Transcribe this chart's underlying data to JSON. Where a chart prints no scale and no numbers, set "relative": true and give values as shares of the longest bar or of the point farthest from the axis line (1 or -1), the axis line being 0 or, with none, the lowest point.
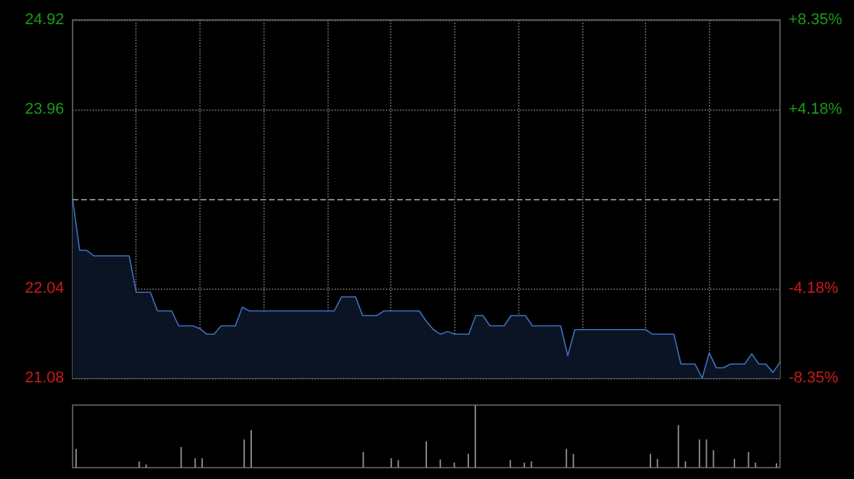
{
  "chart_data": [
    {
      "type": "area",
      "categories": [
        null,
        null,
        null,
        null,
        null,
        null,
        null,
        null,
        null,
        null,
        null,
        null,
        null,
        null,
        null,
        null,
        null,
        null,
        null,
        null,
        null,
        null,
        null,
        null,
        null,
        null,
        null,
        null,
        null,
        null,
        null,
        null,
        null,
        null,
        null,
        null,
        null,
        null,
        null,
        null,
        null,
        null,
        null,
        null,
        null,
        null,
        null,
        null,
        null,
        null,
        null,
        null,
        null,
        null,
        null,
        null,
        null,
        null,
        null,
        null,
        null,
        null,
        null,
        null,
        null,
        null,
        null,
        null,
        null,
        null,
        null,
        null,
        null,
        null,
        null,
        null,
        null,
        null,
        null,
        null,
        null,
        null,
        null,
        null,
        null,
        null,
        null,
        null,
        null,
        null,
        null,
        null,
        null,
        null,
        null,
        null,
        null,
        null,
        null,
        null,
        null
      ],
      "values": [
        23.0,
        22.45,
        22.45,
        22.39,
        22.39,
        22.39,
        22.39,
        22.39,
        22.39,
        22.0,
        22.0,
        22.0,
        21.8,
        21.8,
        21.8,
        21.64,
        21.64,
        21.64,
        21.61,
        21.55,
        21.55,
        21.64,
        21.64,
        21.64,
        21.84,
        21.8,
        21.8,
        21.8,
        21.8,
        21.8,
        21.8,
        21.8,
        21.8,
        21.8,
        21.8,
        21.8,
        21.8,
        21.8,
        21.95,
        21.95,
        21.95,
        21.75,
        21.75,
        21.75,
        21.8,
        21.8,
        21.8,
        21.8,
        21.8,
        21.8,
        21.69,
        21.6,
        21.55,
        21.58,
        21.55,
        21.55,
        21.55,
        21.75,
        21.75,
        21.64,
        21.64,
        21.64,
        21.75,
        21.75,
        21.75,
        21.64,
        21.64,
        21.64,
        21.64,
        21.64,
        21.32,
        21.6,
        21.6,
        21.6,
        21.6,
        21.6,
        21.6,
        21.6,
        21.6,
        21.6,
        21.6,
        21.6,
        21.55,
        21.55,
        21.55,
        21.55,
        21.23,
        21.23,
        21.23,
        21.08,
        21.35,
        21.19,
        21.19,
        21.23,
        21.23,
        21.23,
        21.34,
        21.23,
        21.23,
        21.14,
        21.25
      ],
      "color": "#3f74c4",
      "ylim": [
        21.08,
        24.92
      ],
      "yticks": [
        21.08,
        22.04,
        23.96,
        24.92
      ],
      "y2lim": [
        -8.35,
        8.35
      ],
      "y2ticks": [
        {
          "value": -8.35,
          "label": "-8.35%"
        },
        {
          "value": -4.18,
          "label": "-4.18%"
        },
        {
          "value": 4.18,
          "label": "+4.18%"
        },
        {
          "value": 8.35,
          "label": "+8.35%"
        }
      ],
      "grid": true,
      "line_style": "solid",
      "ref_lines": [
        {
          "axis": "y",
          "value": 23.0,
          "label": null,
          "color": "#888888",
          "line_style": "dashed"
        }
      ]
    },
    {
      "type": "bar",
      "relative": true,
      "categories": [
        null,
        null,
        null,
        null,
        null,
        null,
        null,
        null,
        null,
        null,
        null,
        null,
        null,
        null,
        null,
        null,
        null,
        null,
        null,
        null,
        null,
        null,
        null,
        null,
        null,
        null,
        null,
        null,
        null,
        null,
        null,
        null,
        null,
        null,
        null,
        null,
        null,
        null,
        null,
        null,
        null,
        null,
        null,
        null,
        null,
        null,
        null,
        null,
        null,
        null,
        null,
        null,
        null,
        null,
        null,
        null,
        null,
        null,
        null,
        null,
        null,
        null,
        null,
        null,
        null,
        null,
        null,
        null,
        null,
        null,
        null,
        null,
        null,
        null,
        null,
        null,
        null,
        null,
        null,
        null,
        null,
        null,
        null,
        null,
        null,
        null,
        null,
        null,
        null,
        null,
        null,
        null,
        null,
        null,
        null,
        null,
        null,
        null,
        null,
        null,
        null
      ],
      "values": [
        0.3,
        0,
        0,
        0,
        0,
        0,
        0,
        0,
        0,
        0.1,
        0.05,
        0,
        0,
        0,
        0,
        0.33,
        0,
        0.15,
        0.15,
        0,
        0,
        0,
        0,
        0,
        0.45,
        0.6,
        0,
        0,
        0,
        0,
        0,
        0,
        0,
        0,
        0,
        0,
        0,
        0,
        0,
        0,
        0,
        0.25,
        0,
        0,
        0,
        0.15,
        0.12,
        0,
        0,
        0,
        0.42,
        0,
        0.13,
        0,
        0.08,
        0,
        0.22,
        1.0,
        0,
        0,
        0,
        0,
        0.12,
        0,
        0.08,
        0.1,
        0,
        0,
        0,
        0,
        0.3,
        0.22,
        0,
        0,
        0,
        0,
        0,
        0,
        0,
        0,
        0,
        0,
        0.22,
        0.14,
        0,
        0,
        0.68,
        0.1,
        0,
        0.45,
        0.45,
        0.28,
        0,
        0,
        0.14,
        0,
        0.25,
        0.08,
        0,
        0,
        0.07
      ],
      "color": "#8a8a8a"
    }
  ]
}
